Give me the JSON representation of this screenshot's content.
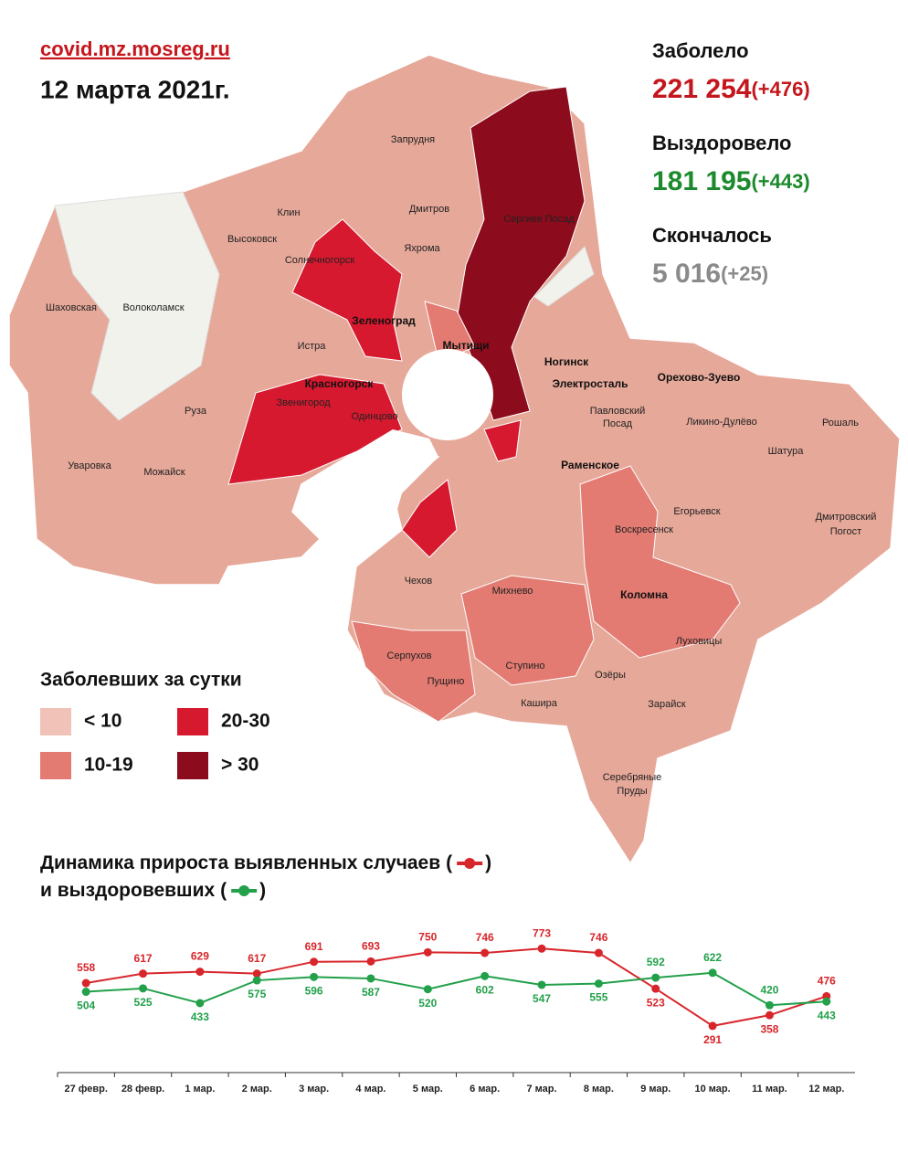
{
  "header": {
    "site": "covid.mz.mosreg.ru",
    "date": "12 марта 2021г."
  },
  "stats": [
    {
      "label": "Заболело",
      "value": "221 254",
      "delta": "(+476)",
      "color": "#c4161c"
    },
    {
      "label": "Выздоровело",
      "value": "181 195",
      "delta": "(+443)",
      "color": "#1c8a2c"
    },
    {
      "label": "Скончалось",
      "value": "5 016",
      "delta": "(+25)",
      "color": "#8a8a8a"
    }
  ],
  "legend": {
    "title": "Заболевших за сутки",
    "items": [
      {
        "label": "< 10",
        "color": "#f0c2b8"
      },
      {
        "label": "20-30",
        "color": "#d7192f"
      },
      {
        "label": "10-19",
        "color": "#e37b72"
      },
      {
        "label": "> 30",
        "color": "#8c0b1c"
      }
    ]
  },
  "map": {
    "labels": [
      "Запрудня",
      "Клин",
      "Дмитров",
      "Сергиев Посад",
      "Высоковск",
      "Яхрома",
      "Солнечногорск",
      "Шаховская",
      "Волоколамск",
      "Зеленоград",
      "Истра",
      "Мытищи",
      "Ногинск",
      "Орехово-Зуево",
      "Красногорск",
      "Электросталь",
      "Звенигород",
      "Одинцово",
      "Павловский",
      "Посад",
      "Ликино-Дулёво",
      "Рошаль",
      "Руза",
      "Шатура",
      "Раменское",
      "Уваровка",
      "Можайск",
      "Егорьевск",
      "Воскресенск",
      "Дмитровский",
      "Погост",
      "Чехов",
      "Михнево",
      "Коломна",
      "Луховицы",
      "Серпухов",
      "Ступино",
      "Озёры",
      "Пущино",
      "Кашира",
      "Зарайск",
      "Серебряные",
      "Пруды"
    ]
  },
  "chart_data": {
    "type": "line",
    "title": "Динамика прироста выявленных случаев",
    "subtitle": "и выздоровевших",
    "legend_brackets": [
      "(",
      ")"
    ],
    "categories": [
      "27 февр.",
      "28 февр.",
      "1 мар.",
      "2 мар.",
      "3 мар.",
      "4 мар.",
      "5 мар.",
      "6 мар.",
      "7 мар.",
      "8 мар.",
      "9 мар.",
      "10 мар.",
      "11 мар.",
      "12 мар."
    ],
    "series": [
      {
        "color": "#d7262b",
        "values": [
          558,
          617,
          629,
          617,
          691,
          693,
          750,
          746,
          773,
          746,
          523,
          291,
          358,
          476
        ]
      },
      {
        "color": "#22a04a",
        "values": [
          504,
          525,
          433,
          575,
          596,
          587,
          520,
          602,
          547,
          555,
          592,
          622,
          420,
          443
        ]
      }
    ],
    "ylim": [
      0,
      900
    ]
  }
}
